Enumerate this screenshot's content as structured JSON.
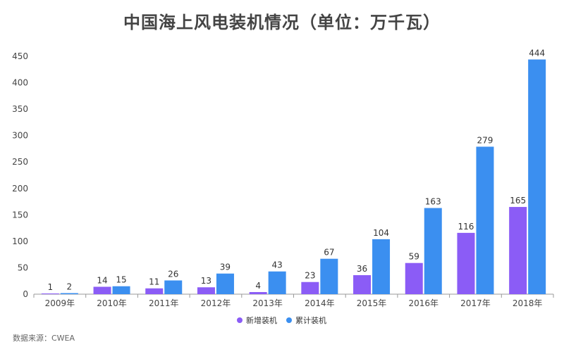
{
  "chart_data": {
    "type": "bar",
    "title": "中国海上风电装机情况（单位：万千瓦）",
    "categories": [
      "2009年",
      "2010年",
      "2011年",
      "2012年",
      "2013年",
      "2014年",
      "2015年",
      "2016年",
      "2017年",
      "2018年"
    ],
    "series": [
      {
        "name": "新增装机",
        "color": "#8b5cf6",
        "values": [
          1,
          14,
          11,
          13,
          4,
          23,
          36,
          59,
          116,
          165
        ]
      },
      {
        "name": "累计装机",
        "color": "#3b8ff0",
        "values": [
          2,
          15,
          26,
          39,
          43,
          67,
          104,
          163,
          279,
          444
        ]
      }
    ],
    "ylim": [
      0,
      450
    ],
    "yticks": [
      0,
      50,
      100,
      150,
      200,
      250,
      300,
      350,
      400,
      450
    ],
    "grid": false,
    "legend_position": "bottom-center"
  },
  "source": "数据来源：CWEA"
}
